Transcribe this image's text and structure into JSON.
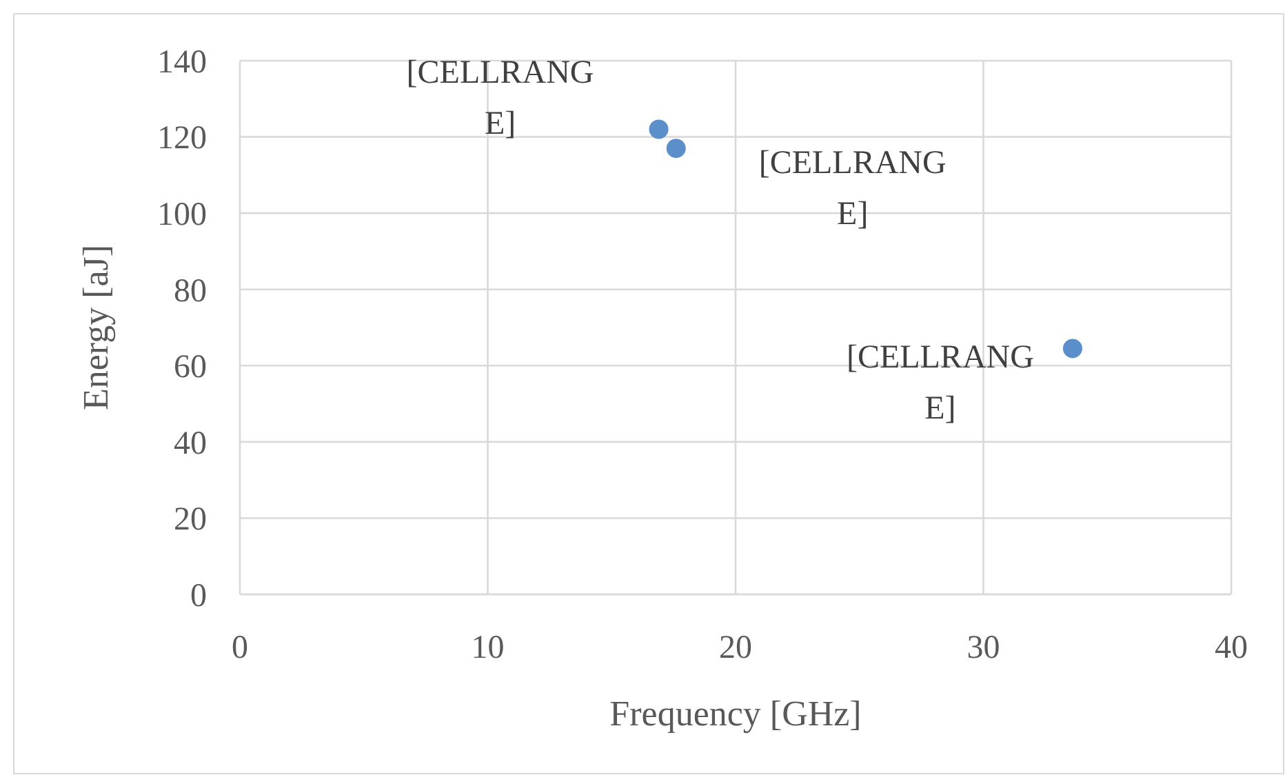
{
  "chart_data": {
    "type": "scatter",
    "xlabel": "Frequency [GHz]",
    "ylabel": "Energy [aJ]",
    "x": [
      16.9,
      17.6,
      33.6
    ],
    "series": [
      {
        "color": "#5b8fc9",
        "values": [
          122,
          117,
          64.5
        ]
      }
    ],
    "xlim": [
      0,
      40
    ],
    "xticks": [
      0,
      10,
      20,
      30,
      40
    ],
    "ylim": [
      0,
      140
    ],
    "yticks": [
      0,
      20,
      40,
      60,
      80,
      100,
      120,
      140
    ],
    "grid": true,
    "marker": "circle",
    "annotations": [
      {
        "text": "[CELLRANGE]",
        "x": 16.9,
        "y": 122
      },
      {
        "text": "[CELLRANGE]",
        "x": 17.6,
        "y": 117
      },
      {
        "text": "[CELLRANGE]",
        "x": 33.6,
        "y": 64.5
      }
    ]
  }
}
